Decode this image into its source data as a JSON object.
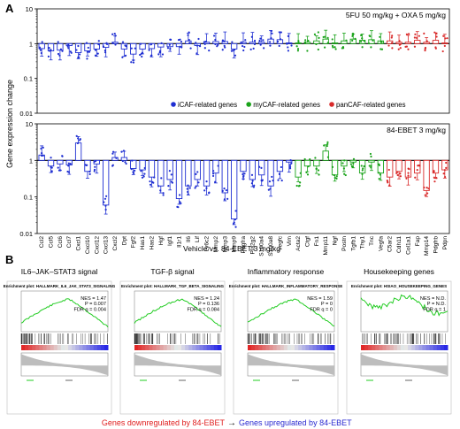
{
  "panels": {
    "a_letter": "A",
    "b_letter": "B"
  },
  "chart_data": [
    {
      "type": "bar",
      "title": "5FU 50 mg/kg + OXA 5 mg/kg",
      "ylabel": "Gene expression change",
      "yscale": "log",
      "ylim": [
        0.01,
        10
      ],
      "yticks": [
        "0.01",
        "0.1",
        "1",
        "10"
      ],
      "reference_line": 1,
      "categories": [
        "Ccl2",
        "Ccl5",
        "Ccl6",
        "Ccl7",
        "Cxcl1",
        "Cxcl10",
        "Cxcl12",
        "Cxcl13",
        "Cxcl2",
        "Dpt",
        "Fgf2",
        "Has1",
        "Has2",
        "Hgf",
        "Igf1",
        "Il1r1",
        "Il6",
        "Lif",
        "Ly6c2",
        "Mmp2",
        "Mmp3",
        "Mmp9",
        "Pdgfra",
        "Pla2g2",
        "S100a4",
        "S100a8",
        "Vegfc",
        "Vim",
        "Acta2",
        "Ctgf",
        "Fn1",
        "Mmp11",
        "Ngf",
        "Postn",
        "Tgfb1",
        "Thy1",
        "Tnc",
        "Vegfa",
        "C5ar2",
        "Cdh11",
        "Col1a1",
        "Fap",
        "Mmp14",
        "Pdgfrb",
        "Pdpn"
      ],
      "groups": [
        {
          "name": "iCAF-related genes",
          "color": "#1f2fd2",
          "count": 28
        },
        {
          "name": "myCAF-related genes",
          "color": "#1aa31a",
          "count": 10
        },
        {
          "name": "panCAF-related genes",
          "color": "#d92b2b",
          "count": 7
        }
      ],
      "values": [
        0.72,
        0.62,
        0.65,
        0.88,
        0.55,
        0.62,
        0.7,
        0.78,
        1.1,
        0.7,
        0.5,
        0.7,
        0.72,
        0.8,
        0.82,
        0.82,
        1.2,
        0.88,
        1.1,
        1.15,
        1.15,
        0.7,
        1.1,
        1.1,
        1.1,
        1.35,
        1.3,
        1.05,
        1.05,
        1.1,
        1.2,
        1.35,
        1.05,
        1.2,
        1.35,
        1.25,
        1.3,
        1.2,
        1.2,
        1.1,
        1.1,
        1.25,
        1.1,
        1.25,
        1.05
      ]
    },
    {
      "type": "bar",
      "title": "84-EBET 3 mg/kg",
      "ylabel": "Gene expression change",
      "yscale": "log",
      "ylim": [
        0.01,
        10
      ],
      "yticks": [
        "0.01",
        "0.1",
        "1",
        "10"
      ],
      "reference_line": 1,
      "values": [
        1.4,
        0.7,
        0.8,
        0.75,
        3.0,
        0.5,
        0.8,
        0.06,
        1.2,
        1.2,
        0.6,
        0.55,
        0.35,
        0.2,
        0.3,
        0.09,
        0.2,
        0.3,
        0.2,
        0.45,
        0.13,
        0.025,
        0.5,
        0.3,
        0.4,
        0.2,
        0.5,
        0.9,
        0.35,
        0.7,
        0.7,
        1.8,
        0.4,
        0.7,
        0.9,
        0.45,
        0.9,
        0.45,
        0.35,
        0.5,
        0.35,
        0.45,
        0.15,
        0.45,
        0.55
      ]
    }
  ],
  "xaxis_label": "Vehicle vs. 84-EBET 3 mg/kg",
  "gsea": {
    "panels": [
      {
        "heading": "IL6–JAK–STAT3 signal",
        "plot_title": "Enrichment plot: HALLMARK_IL6_JAK_STAT3_SIGNALING",
        "nes": "NES = 1.47",
        "p": "P = 0.007",
        "fdr": "FDR q = 0.004",
        "shape": "up"
      },
      {
        "heading": "TGF-β signal",
        "plot_title": "Enrichment plot: HALLMARK_TGF_BETA_SIGNALING",
        "nes": "NES = 1.24",
        "p": "P = 0.136",
        "fdr": "FDR q = 0.084",
        "shape": "up"
      },
      {
        "heading": "Inflammatory response",
        "plot_title": "Enrichment plot: HALLMARK_INFLAMMATORY_RESPONSE",
        "nes": "NES = 1.59",
        "p": "P = 0",
        "fdr": "FDR q = 0",
        "shape": "up"
      },
      {
        "heading": "Housekeeping genes",
        "plot_title": "Enrichment plot: HSIAO_HOUSEKEEPING_GENES",
        "nes": "NES = N.D.",
        "p": "P = N.D.",
        "fdr": "FDR q = 1",
        "shape": "flat"
      }
    ],
    "footer_left": "Genes downregulated by 84-EBET",
    "footer_arrow": "→",
    "footer_right": "Genes upregulated by 84-EBET",
    "colors": {
      "down": "#e02020",
      "up": "#2a2ad0",
      "curve": "#22cc22"
    }
  }
}
